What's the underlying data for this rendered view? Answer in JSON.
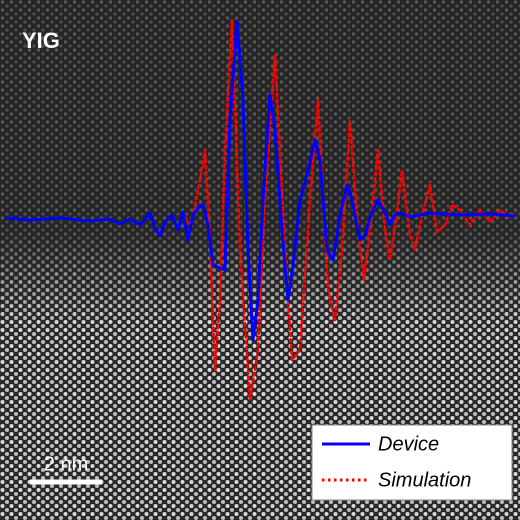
{
  "chart_data": {
    "type": "line",
    "title": "YIG",
    "scale_bar": "2 nm",
    "xlim": [
      0,
      104
    ],
    "ylim": [
      -3.03,
      2.17
    ],
    "legend": "bottom-right",
    "series": [
      {
        "name": "Device",
        "color": "#0000ff",
        "style": "solid",
        "x": [
          1,
          6,
          12,
          18,
          22,
          24,
          26,
          28,
          30,
          31,
          32,
          33,
          34.4,
          35.6,
          36.6,
          37.6,
          38.6,
          39.6,
          40.6,
          41.6,
          42.6,
          44,
          45,
          46,
          47.4,
          48.6,
          49.6,
          50.6,
          51.6,
          52.6,
          54,
          55,
          56.4,
          57.6,
          58.6,
          60,
          61.4,
          63,
          64,
          65.4,
          66.6,
          68,
          69.4,
          70.4,
          72,
          73,
          74.4,
          75.6,
          77,
          78,
          79,
          80,
          82,
          86,
          92,
          98,
          103
        ],
        "values": [
          -0.01,
          -0.03,
          -0.01,
          -0.04,
          -0.02,
          -0.07,
          -0.02,
          -0.08,
          0.04,
          -0.11,
          -0.19,
          -0.05,
          0.02,
          -0.13,
          0.05,
          -0.23,
          0.02,
          0.09,
          0.12,
          -0.08,
          -0.48,
          -0.51,
          -0.53,
          0.97,
          1.95,
          1.17,
          -0.33,
          -1.23,
          -0.83,
          0.17,
          1.22,
          0.87,
          -0.13,
          -0.83,
          -0.48,
          0.17,
          0.42,
          0.77,
          0.57,
          -0.33,
          -0.43,
          0.02,
          0.32,
          0.17,
          -0.23,
          -0.18,
          0.05,
          0.17,
          0.04,
          -0.08,
          0.02,
          0.04,
          0,
          0.04,
          0.02,
          0.03,
          0.01
        ]
      },
      {
        "name": "Simulation",
        "color": "#ff0000",
        "style": "dotted",
        "x": [
          37,
          38,
          38.6,
          40,
          41,
          42,
          43,
          44,
          45,
          46.4,
          48,
          50,
          51.6,
          53,
          55,
          57,
          58.4,
          60,
          62,
          63.6,
          65.6,
          67,
          68.4,
          70,
          71.6,
          72.8,
          74,
          75.6,
          77,
          78,
          79.2,
          80.4,
          82,
          83,
          84.4,
          86,
          87.4,
          89,
          90.4,
          92,
          94,
          96,
          98,
          100,
          102,
          103
        ],
        "values": [
          0,
          -0.08,
          0.02,
          0.37,
          0.67,
          -0.23,
          -1.53,
          -0.83,
          0.67,
          1.97,
          -0.33,
          -1.83,
          -1.33,
          0.17,
          1.62,
          -0.33,
          -1.43,
          -1.33,
          0.17,
          1.17,
          -0.73,
          -1.03,
          -0.33,
          0.97,
          -0.13,
          -0.63,
          -0.13,
          0.67,
          -0.13,
          -0.43,
          -0.03,
          0.47,
          -0.18,
          -0.33,
          0.02,
          0.32,
          -0.15,
          -0.08,
          0.12,
          0.07,
          -0.08,
          0.07,
          -0.05,
          0.07,
          -0.01,
          0.05
        ]
      }
    ]
  }
}
